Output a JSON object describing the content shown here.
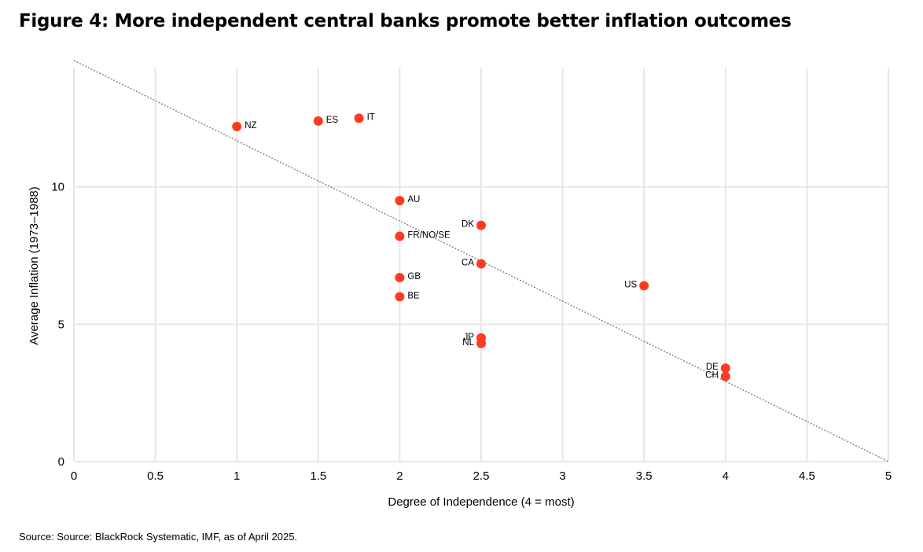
{
  "title": "Figure 4: More independent central banks promote better inflation outcomes",
  "source": "Source: Source: BlackRock Systematic, IMF, as of April 2025.",
  "colors": {
    "point": "#ff3b1f",
    "grid": "#e6e6e6",
    "trendline": "#7a7a7a"
  },
  "chart_data": {
    "type": "scatter",
    "xlabel": "Degree of Independence (4 = most)",
    "ylabel": "Average Inflation (1973–1988)",
    "xlim": [
      0,
      5
    ],
    "ylim": [
      0,
      14.8
    ],
    "x_ticks": [
      0,
      0.5,
      1,
      1.5,
      2,
      2.5,
      3,
      3.5,
      4,
      4.5,
      5
    ],
    "x_tick_labels": [
      "0",
      "0.5",
      "1",
      "1.5",
      "2",
      "2.5",
      "3",
      "3.5",
      "4",
      "4.5",
      "5"
    ],
    "y_ticks": [
      0,
      5,
      10
    ],
    "y_tick_labels": [
      "0",
      "5",
      "10"
    ],
    "grid": true,
    "trendline": {
      "x": [
        0,
        5
      ],
      "y": [
        14.6,
        0
      ]
    },
    "points": [
      {
        "label": "NZ",
        "x": 1,
        "y": 12.2,
        "label_side": "right"
      },
      {
        "label": "ES",
        "x": 1.5,
        "y": 12.4,
        "label_side": "right"
      },
      {
        "label": "IT",
        "x": 1.75,
        "y": 12.5,
        "label_side": "right"
      },
      {
        "label": "AU",
        "x": 2,
        "y": 9.5,
        "label_side": "right"
      },
      {
        "label": "FR/NO/SE",
        "x": 2,
        "y": 8.2,
        "label_side": "right"
      },
      {
        "label": "GB",
        "x": 2,
        "y": 6.7,
        "label_side": "right"
      },
      {
        "label": "BE",
        "x": 2,
        "y": 6.0,
        "label_side": "right"
      },
      {
        "label": "DK",
        "x": 2.5,
        "y": 8.6,
        "label_side": "left"
      },
      {
        "label": "CA",
        "x": 2.5,
        "y": 7.2,
        "label_side": "left"
      },
      {
        "label": "JP",
        "x": 2.5,
        "y": 4.5,
        "label_side": "left"
      },
      {
        "label": "NL",
        "x": 2.5,
        "y": 4.3,
        "label_side": "left"
      },
      {
        "label": "US",
        "x": 3.5,
        "y": 6.4,
        "label_side": "left"
      },
      {
        "label": "DE",
        "x": 4,
        "y": 3.4,
        "label_side": "left"
      },
      {
        "label": "CH",
        "x": 4,
        "y": 3.1,
        "label_side": "left"
      }
    ]
  }
}
